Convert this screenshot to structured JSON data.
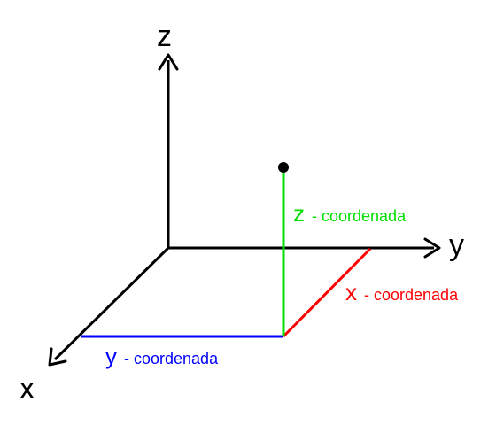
{
  "axes": {
    "x_label": "x",
    "y_label": "y",
    "z_label": "z",
    "color": "#000000"
  },
  "coordinate_labels": {
    "x": {
      "letter": "x",
      "text": "- coordenada",
      "color": "#ff0000"
    },
    "y": {
      "letter": "y",
      "text": "- coordenada",
      "color": "#0000ff"
    },
    "z": {
      "letter": "z",
      "text": "- coordenada",
      "color": "#00e000"
    }
  },
  "point": {
    "color": "#000000"
  }
}
